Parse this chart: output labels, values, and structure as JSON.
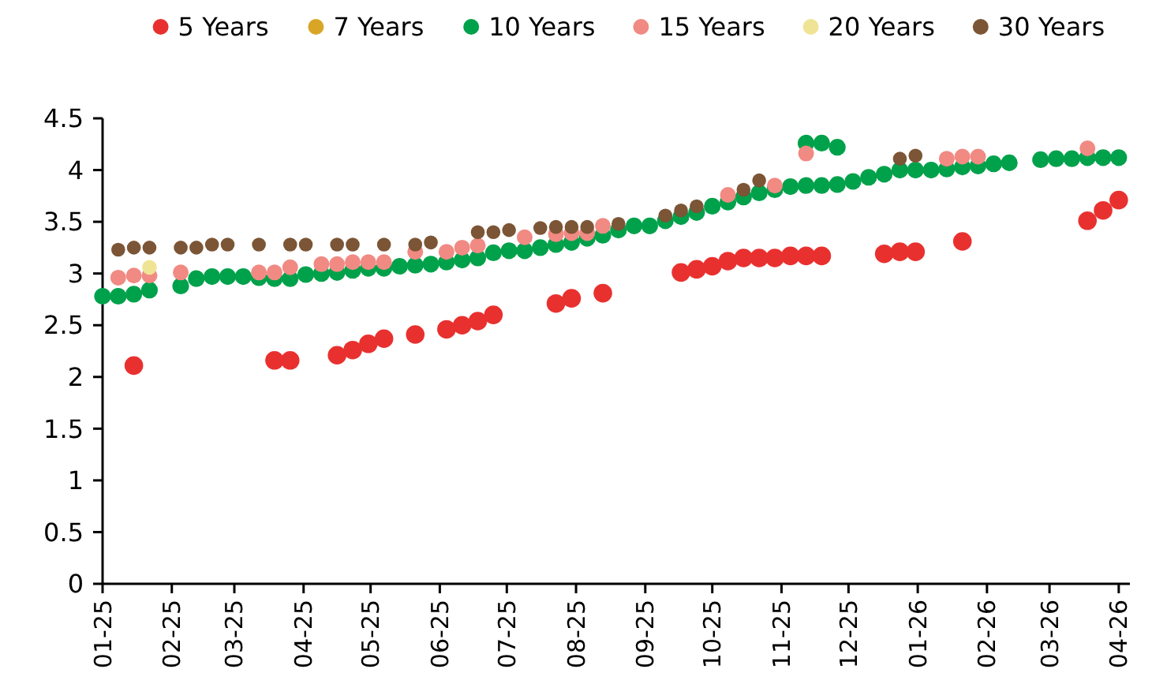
{
  "chart_data": {
    "type": "scatter",
    "legend": "top",
    "marker": "circle",
    "grid": false,
    "xlim": [
      "2025-01-01",
      "2026-04-06"
    ],
    "xticks": [
      {
        "value": "2025-01-01",
        "label": "01-25"
      },
      {
        "value": "2025-02-01",
        "label": "02-25"
      },
      {
        "value": "2025-03-01",
        "label": "03-25"
      },
      {
        "value": "2025-04-01",
        "label": "04-25"
      },
      {
        "value": "2025-05-01",
        "label": "05-25"
      },
      {
        "value": "2025-06-01",
        "label": "06-25"
      },
      {
        "value": "2025-07-01",
        "label": "07-25"
      },
      {
        "value": "2025-08-01",
        "label": "08-25"
      },
      {
        "value": "2025-09-01",
        "label": "09-25"
      },
      {
        "value": "2025-10-01",
        "label": "10-25"
      },
      {
        "value": "2025-11-01",
        "label": "11-25"
      },
      {
        "value": "2025-12-01",
        "label": "12-25"
      },
      {
        "value": "2026-01-01",
        "label": "01-26"
      },
      {
        "value": "2026-02-01",
        "label": "02-26"
      },
      {
        "value": "2026-03-01",
        "label": "03-26"
      },
      {
        "value": "2026-04-01",
        "label": "04-26"
      }
    ],
    "ylim": [
      0,
      4.5
    ],
    "yticks": [
      0,
      0.5,
      1,
      1.5,
      2,
      2.5,
      3,
      3.5,
      4,
      4.5
    ],
    "series": [
      {
        "name": "5 Years",
        "color": "#e8312f",
        "x": [
          "2025-01-15",
          "2025-03-19",
          "2025-03-26",
          "2025-04-16",
          "2025-04-23",
          "2025-04-30",
          "2025-05-07",
          "2025-05-21",
          "2025-06-04",
          "2025-06-11",
          "2025-06-18",
          "2025-06-25",
          "2025-07-23",
          "2025-07-30",
          "2025-08-13",
          "2025-09-17",
          "2025-09-24",
          "2025-10-01",
          "2025-10-08",
          "2025-10-15",
          "2025-10-22",
          "2025-10-29",
          "2025-11-05",
          "2025-11-12",
          "2025-11-19",
          "2025-12-17",
          "2025-12-24",
          "2025-12-31",
          "2026-01-21",
          "2026-03-18",
          "2026-03-25",
          "2026-04-01"
        ],
        "values": [
          2.11,
          2.16,
          2.16,
          2.21,
          2.26,
          2.32,
          2.37,
          2.41,
          2.46,
          2.5,
          2.54,
          2.6,
          2.71,
          2.76,
          2.81,
          3.01,
          3.04,
          3.07,
          3.12,
          3.15,
          3.15,
          3.15,
          3.17,
          3.17,
          3.17,
          3.19,
          3.21,
          3.21,
          3.31,
          3.51,
          3.61,
          3.71
        ]
      },
      {
        "name": "7 Years",
        "color": "#d9a526"
      },
      {
        "name": "10 Years",
        "color": "#00a14b",
        "x": [
          "2025-01-01",
          "2025-01-08",
          "2025-01-15",
          "2025-01-22",
          "2025-02-05",
          "2025-02-12",
          "2025-02-19",
          "2025-02-26",
          "2025-03-05",
          "2025-03-12",
          "2025-03-19",
          "2025-03-26",
          "2025-04-02",
          "2025-04-09",
          "2025-04-16",
          "2025-04-23",
          "2025-04-30",
          "2025-05-07",
          "2025-05-14",
          "2025-05-21",
          "2025-05-28",
          "2025-06-04",
          "2025-06-11",
          "2025-06-18",
          "2025-06-25",
          "2025-07-02",
          "2025-07-09",
          "2025-07-16",
          "2025-07-23",
          "2025-07-30",
          "2025-08-06",
          "2025-08-13",
          "2025-08-20",
          "2025-08-27",
          "2025-09-03",
          "2025-09-10",
          "2025-09-17",
          "2025-09-24",
          "2025-10-01",
          "2025-10-08",
          "2025-10-15",
          "2025-10-22",
          "2025-10-29",
          "2025-11-05",
          "2025-11-12",
          "2025-11-19",
          "2025-11-26",
          "2025-12-03",
          "2025-12-10",
          "2025-12-17",
          "2025-12-24",
          "2025-12-31",
          "2026-01-07",
          "2026-01-14",
          "2026-01-21",
          "2026-01-28",
          "2026-02-04",
          "2026-02-11",
          "2026-02-25",
          "2026-03-04",
          "2026-03-11",
          "2026-03-18",
          "2026-03-25",
          "2026-04-01",
          "2025-11-12",
          "2025-11-19",
          "2025-11-26"
        ],
        "values": [
          2.78,
          2.78,
          2.8,
          2.84,
          2.88,
          2.95,
          2.97,
          2.97,
          2.97,
          2.96,
          2.95,
          2.95,
          2.99,
          3.0,
          3.01,
          3.03,
          3.05,
          3.05,
          3.07,
          3.08,
          3.09,
          3.11,
          3.13,
          3.15,
          3.2,
          3.22,
          3.22,
          3.25,
          3.28,
          3.3,
          3.34,
          3.37,
          3.42,
          3.46,
          3.46,
          3.51,
          3.55,
          3.59,
          3.65,
          3.69,
          3.74,
          3.78,
          3.81,
          3.84,
          3.85,
          3.85,
          3.86,
          3.89,
          3.93,
          3.96,
          4.0,
          4.0,
          4.0,
          4.01,
          4.03,
          4.04,
          4.06,
          4.07,
          4.1,
          4.11,
          4.11,
          4.12,
          4.12,
          4.12,
          4.26,
          4.26,
          4.22
        ]
      },
      {
        "name": "15 Years",
        "color": "#f08a83",
        "x": [
          "2025-01-08",
          "2025-01-15",
          "2025-01-22",
          "2025-02-05",
          "2025-03-12",
          "2025-03-19",
          "2025-03-26",
          "2025-04-09",
          "2025-04-16",
          "2025-04-23",
          "2025-04-30",
          "2025-05-07",
          "2025-05-21",
          "2025-06-04",
          "2025-06-11",
          "2025-06-18",
          "2025-07-09",
          "2025-07-23",
          "2025-07-30",
          "2025-08-06",
          "2025-08-13",
          "2025-10-08",
          "2025-10-29",
          "2025-11-12",
          "2026-01-14",
          "2026-01-21",
          "2026-01-28",
          "2026-03-18"
        ],
        "values": [
          2.96,
          2.98,
          2.98,
          3.01,
          3.01,
          3.01,
          3.06,
          3.09,
          3.09,
          3.11,
          3.11,
          3.11,
          3.21,
          3.21,
          3.25,
          3.27,
          3.35,
          3.38,
          3.39,
          3.39,
          3.46,
          3.76,
          3.85,
          4.16,
          4.11,
          4.13,
          4.13,
          4.21
        ]
      },
      {
        "name": "20 Years",
        "color": "#efe495",
        "x": [
          "2025-01-22"
        ],
        "values": [
          3.06
        ]
      },
      {
        "name": "30 Years",
        "color": "#7b5535",
        "x": [
          "2025-01-08",
          "2025-01-15",
          "2025-01-22",
          "2025-02-05",
          "2025-02-12",
          "2025-02-19",
          "2025-02-26",
          "2025-03-12",
          "2025-03-26",
          "2025-04-02",
          "2025-04-16",
          "2025-04-23",
          "2025-05-07",
          "2025-05-21",
          "2025-05-28",
          "2025-06-18",
          "2025-06-25",
          "2025-07-02",
          "2025-07-16",
          "2025-07-23",
          "2025-07-30",
          "2025-08-06",
          "2025-08-20",
          "2025-09-10",
          "2025-09-17",
          "2025-09-24",
          "2025-10-15",
          "2025-10-22",
          "2025-12-24",
          "2025-12-31"
        ],
        "values": [
          3.23,
          3.25,
          3.25,
          3.25,
          3.25,
          3.28,
          3.28,
          3.28,
          3.28,
          3.28,
          3.28,
          3.28,
          3.28,
          3.28,
          3.3,
          3.4,
          3.4,
          3.42,
          3.44,
          3.45,
          3.45,
          3.45,
          3.48,
          3.56,
          3.61,
          3.65,
          3.81,
          3.9,
          4.11,
          4.14
        ]
      }
    ]
  }
}
